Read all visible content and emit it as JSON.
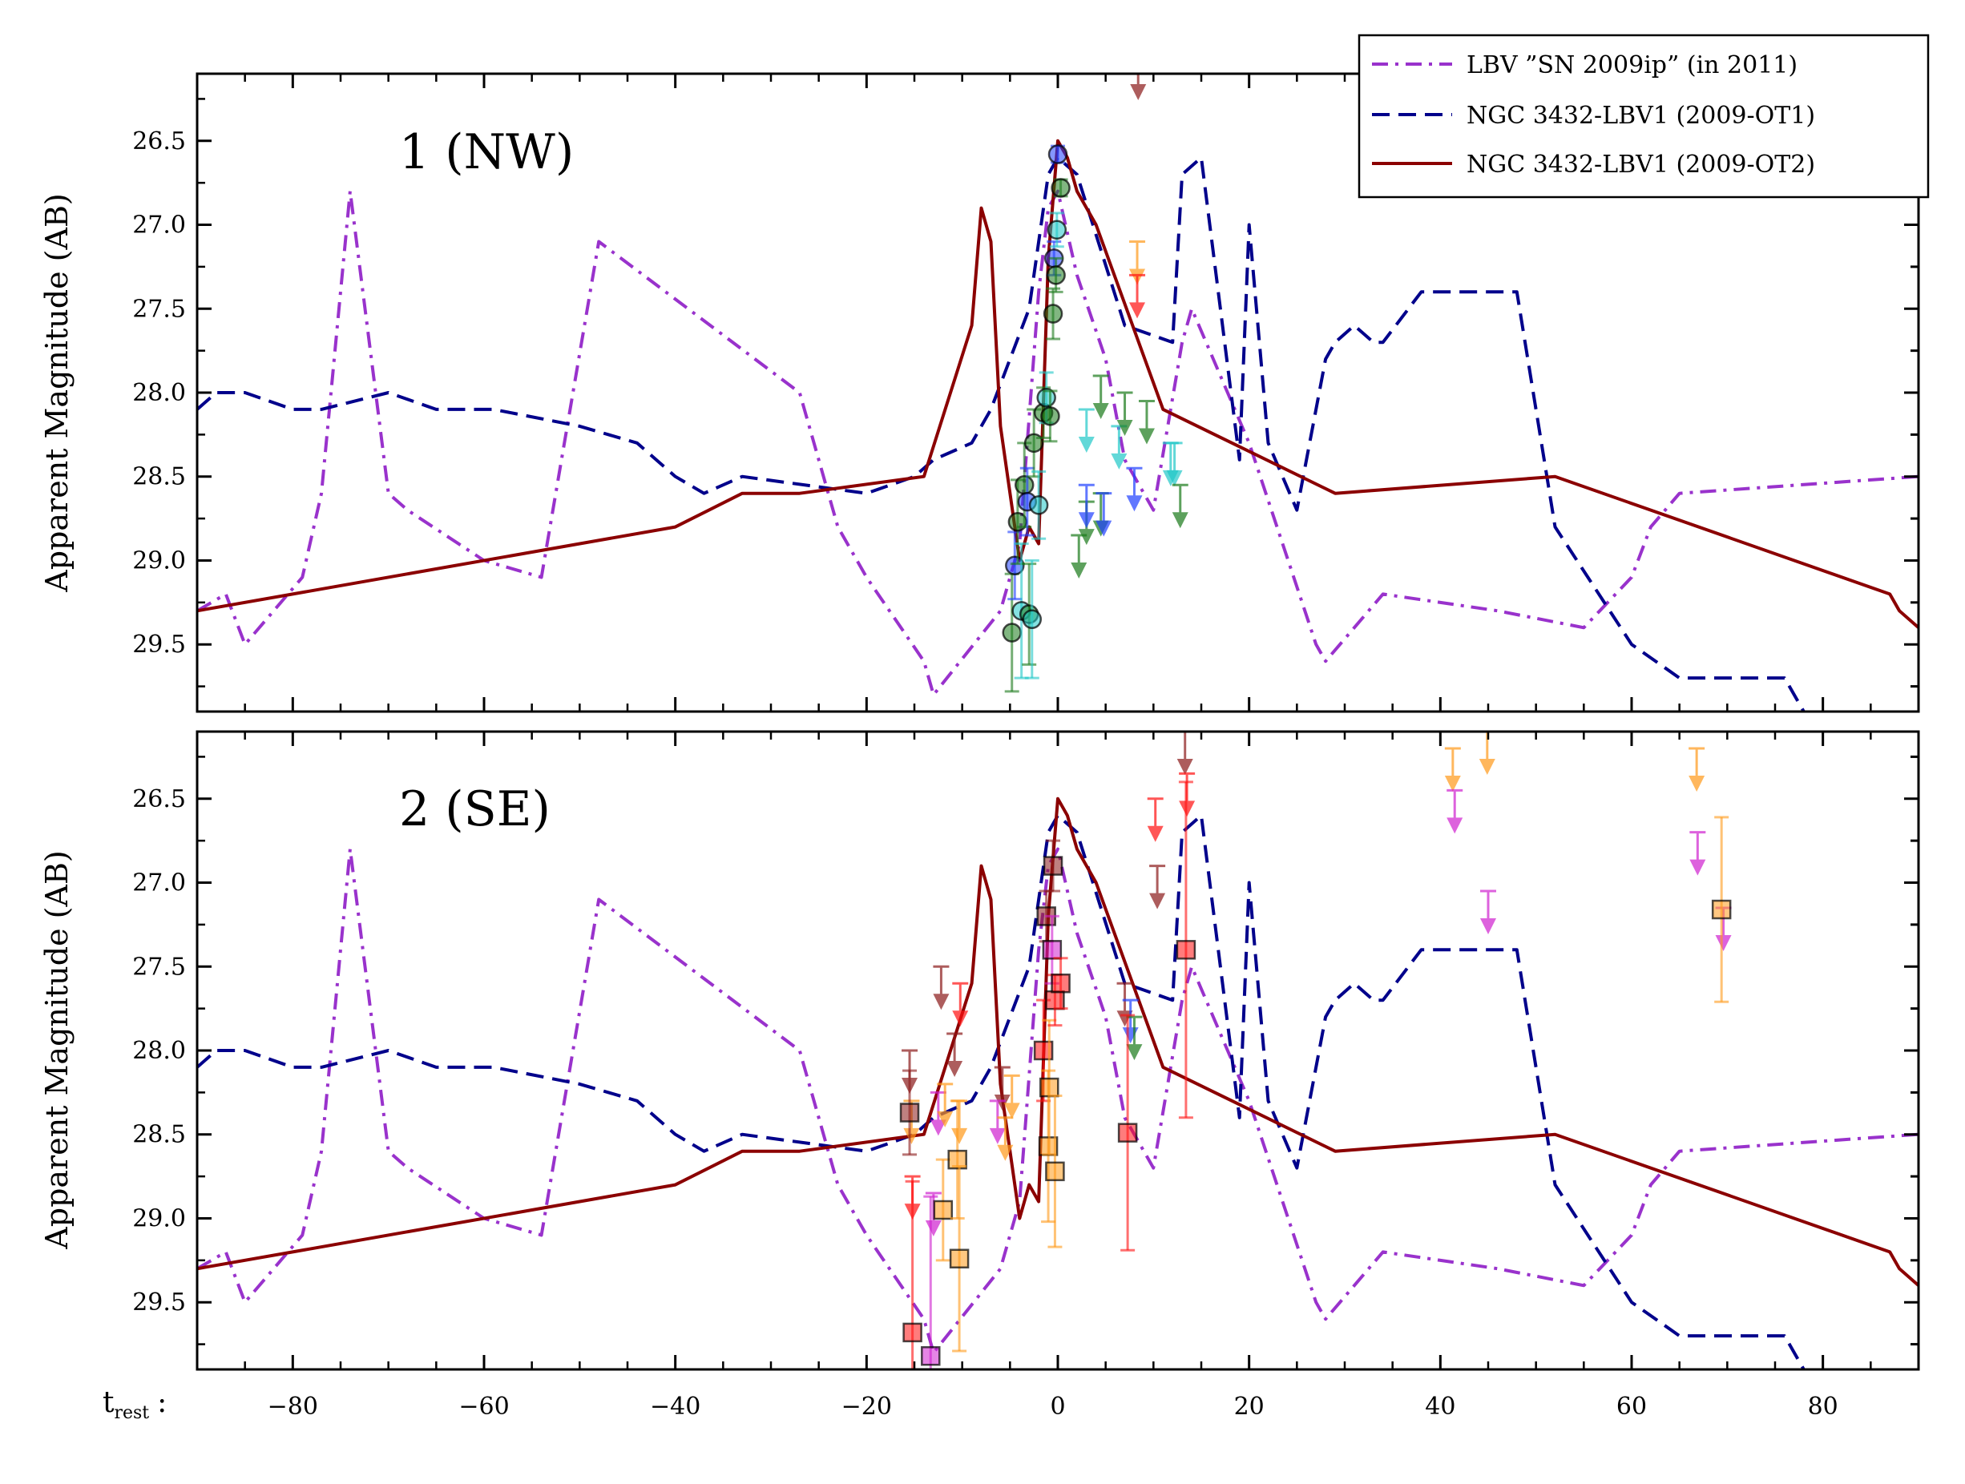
{
  "figure": {
    "trest_label": "t",
    "trest_subscript": "rest",
    "trest_colon": ":"
  },
  "legend": [
    {
      "label": "LBV ”SN 2009ip” (in 2011)",
      "color": "#9932CC",
      "style": "dashdot"
    },
    {
      "label": "NGC 3432-LBV1 (2009-OT1)",
      "color": "#00008B",
      "style": "dashed"
    },
    {
      "label": "NGC 3432-LBV1 (2009-OT2)",
      "color": "#8B0000",
      "style": "solid"
    }
  ],
  "colors": {
    "lbv_2009ip": "#9932CC",
    "ot1": "#00008B",
    "ot2": "#8B0000",
    "blue": "#1f3fff",
    "cyan": "#20c8c8",
    "green": "#1a7a1a",
    "red": "#ff1010",
    "orange": "#ff9a1a",
    "magenta": "#d020d0",
    "darkred": "#8b1a1a"
  },
  "chart_data": [
    {
      "type": "line",
      "title": "1 (NW)",
      "xlabel": "",
      "ylabel": "Apparent Magnitude (AB)",
      "xlim": [
        -90,
        90
      ],
      "ylim": [
        29.9,
        26.1
      ],
      "y_inverted": true,
      "xticks": [
        -80,
        -60,
        -40,
        -20,
        0,
        20,
        40,
        60,
        80
      ],
      "xtick_labels": [
        "−80",
        "−60",
        "−40",
        "−20",
        "0",
        "20",
        "40",
        "60",
        "80"
      ],
      "yticks": [
        26.5,
        27.0,
        27.5,
        28.0,
        28.5,
        29.0,
        29.5
      ],
      "ytick_labels": [
        "26.5",
        "27.0",
        "27.5",
        "28.0",
        "28.5",
        "29.0",
        "29.5"
      ],
      "series": [
        {
          "name": "LBV ”SN 2009ip” (in 2011)",
          "color": "#9932CC",
          "style": "dashdot",
          "x": [
            -90,
            -87,
            -85,
            -79,
            -77,
            -74,
            -70,
            -68,
            -60,
            -54,
            -48,
            -27,
            -23,
            -20,
            -14,
            -13,
            -6,
            -4,
            -2,
            -1,
            0,
            2,
            5,
            7,
            10,
            13,
            14,
            20,
            27,
            28,
            31,
            34,
            46,
            55,
            60,
            62,
            65,
            90
          ],
          "y": [
            29.3,
            29.2,
            29.5,
            29.1,
            28.6,
            26.8,
            28.6,
            28.7,
            29.0,
            29.1,
            27.1,
            28.0,
            28.8,
            29.1,
            29.6,
            29.8,
            29.3,
            28.9,
            27.4,
            26.9,
            26.8,
            27.3,
            27.8,
            28.4,
            28.7,
            27.7,
            27.5,
            28.3,
            29.5,
            29.6,
            29.4,
            29.2,
            29.3,
            29.4,
            29.1,
            28.8,
            28.6,
            28.5
          ]
        },
        {
          "name": "NGC 3432-LBV1 (2009-OT1)",
          "color": "#00008B",
          "style": "dashed",
          "x": [
            -90,
            -88,
            -85,
            -80,
            -79,
            -77,
            -70,
            -65,
            -60,
            -59,
            -50,
            -44,
            -40,
            -37,
            -33,
            -20,
            -15,
            -13,
            -9,
            -7,
            -3,
            -1,
            0,
            2,
            7,
            12,
            13,
            15,
            19,
            20,
            22,
            25,
            28,
            29,
            31,
            33,
            34,
            38,
            48,
            52,
            60,
            65,
            76,
            78
          ],
          "y": [
            28.1,
            28.0,
            28.0,
            28.1,
            28.1,
            28.1,
            28.0,
            28.1,
            28.1,
            28.1,
            28.2,
            28.3,
            28.5,
            28.6,
            28.5,
            28.6,
            28.5,
            28.4,
            28.3,
            28.1,
            27.5,
            26.7,
            26.6,
            26.7,
            27.6,
            27.7,
            26.7,
            26.6,
            28.4,
            27.0,
            28.3,
            28.7,
            27.8,
            27.7,
            27.6,
            27.7,
            27.7,
            27.4,
            27.4,
            28.8,
            29.5,
            29.7,
            29.7,
            29.9
          ]
        },
        {
          "name": "NGC 3432-LBV1 (2009-OT2)",
          "color": "#8B0000",
          "style": "solid",
          "x": [
            -90,
            -40,
            -33,
            -27,
            -14,
            -9,
            -8,
            -7,
            -6,
            -4,
            -3,
            -2,
            -1,
            0,
            1,
            2,
            4,
            11,
            29,
            52,
            87,
            88,
            90
          ],
          "y": [
            29.3,
            28.8,
            28.6,
            28.6,
            28.5,
            27.6,
            26.9,
            27.1,
            28.2,
            29.0,
            28.8,
            28.9,
            27.2,
            26.5,
            26.6,
            26.8,
            27.0,
            28.1,
            28.6,
            28.5,
            29.2,
            29.3,
            29.4
          ]
        }
      ],
      "detections": [
        {
          "band": "green",
          "x": -4.8,
          "y": 29.43,
          "err": 0.35
        },
        {
          "band": "blue",
          "x": -4.5,
          "y": 29.03,
          "err": 0.2
        },
        {
          "band": "green",
          "x": -4.2,
          "y": 28.77,
          "err": 0.25
        },
        {
          "band": "cyan",
          "x": -3.8,
          "y": 29.3,
          "err": 0.4
        },
        {
          "band": "green",
          "x": -3.5,
          "y": 28.55,
          "err": 0.25
        },
        {
          "band": "blue",
          "x": -3.2,
          "y": 28.65,
          "err": 0.2
        },
        {
          "band": "green",
          "x": -3.0,
          "y": 29.32,
          "err": 0.3
        },
        {
          "band": "cyan",
          "x": -2.7,
          "y": 29.35,
          "err": 0.35
        },
        {
          "band": "green",
          "x": -2.5,
          "y": 28.3,
          "err": 0.2
        },
        {
          "band": "cyan",
          "x": -2.0,
          "y": 28.67,
          "err": 0.2
        },
        {
          "band": "green",
          "x": -1.5,
          "y": 28.12,
          "err": 0.15
        },
        {
          "band": "cyan",
          "x": -1.2,
          "y": 28.03,
          "err": 0.15
        },
        {
          "band": "green",
          "x": -0.8,
          "y": 28.14,
          "err": 0.15
        },
        {
          "band": "green",
          "x": -0.5,
          "y": 27.53,
          "err": 0.15
        },
        {
          "band": "blue",
          "x": -0.4,
          "y": 27.2,
          "err": 0.1
        },
        {
          "band": "green",
          "x": -0.2,
          "y": 27.3,
          "err": 0.1
        },
        {
          "band": "cyan",
          "x": -0.1,
          "y": 27.03,
          "err": 0.1
        },
        {
          "band": "blue",
          "x": 0.0,
          "y": 26.58,
          "err": 0.05
        },
        {
          "band": "green",
          "x": 0.3,
          "y": 26.78,
          "err": 0.05
        }
      ],
      "upper_limits": [
        {
          "band": "darkred",
          "x": 8.4,
          "y": 26.0
        },
        {
          "band": "orange",
          "x": 8.3,
          "y": 27.1
        },
        {
          "band": "red",
          "x": 8.3,
          "y": 27.3
        },
        {
          "band": "cyan",
          "x": 3.0,
          "y": 28.1
        },
        {
          "band": "green",
          "x": 4.5,
          "y": 27.9
        },
        {
          "band": "cyan",
          "x": 6.4,
          "y": 28.2
        },
        {
          "band": "green",
          "x": 7.0,
          "y": 28.0
        },
        {
          "band": "green",
          "x": 9.3,
          "y": 28.05
        },
        {
          "band": "cyan",
          "x": 11.8,
          "y": 28.3
        },
        {
          "band": "cyan",
          "x": 12.2,
          "y": 28.3
        },
        {
          "band": "green",
          "x": 3.0,
          "y": 28.65
        },
        {
          "band": "blue",
          "x": 3.0,
          "y": 28.55
        },
        {
          "band": "green",
          "x": 4.5,
          "y": 28.6
        },
        {
          "band": "blue",
          "x": 4.8,
          "y": 28.6
        },
        {
          "band": "blue",
          "x": 8.0,
          "y": 28.45
        },
        {
          "band": "green",
          "x": 12.8,
          "y": 28.55
        },
        {
          "band": "green",
          "x": 2.2,
          "y": 28.85
        }
      ]
    },
    {
      "type": "line",
      "title": "2 (SE)",
      "xlabel": "",
      "ylabel": "Apparent Magnitude (AB)",
      "xlim": [
        -90,
        90
      ],
      "ylim": [
        29.9,
        26.1
      ],
      "y_inverted": true,
      "xticks": [
        -80,
        -60,
        -40,
        -20,
        0,
        20,
        40,
        60,
        80
      ],
      "xtick_labels": [
        "−80",
        "−60",
        "−40",
        "−20",
        "0",
        "20",
        "40",
        "60",
        "80"
      ],
      "yticks": [
        26.5,
        27.0,
        27.5,
        28.0,
        28.5,
        29.0,
        29.5
      ],
      "ytick_labels": [
        "26.5",
        "27.0",
        "27.5",
        "28.0",
        "28.5",
        "29.0",
        "29.5"
      ],
      "series": [
        {
          "name": "LBV ”SN 2009ip” (in 2011)",
          "color": "#9932CC",
          "style": "dashdot",
          "x": [
            -90,
            -87,
            -85,
            -79,
            -77,
            -74,
            -70,
            -68,
            -60,
            -54,
            -48,
            -27,
            -23,
            -20,
            -14,
            -13,
            -6,
            -4,
            -2,
            -1,
            0,
            2,
            5,
            7,
            10,
            13,
            14,
            20,
            27,
            28,
            31,
            34,
            46,
            55,
            60,
            62,
            65,
            90
          ],
          "y": [
            29.3,
            29.2,
            29.5,
            29.1,
            28.6,
            26.8,
            28.6,
            28.7,
            29.0,
            29.1,
            27.1,
            28.0,
            28.8,
            29.1,
            29.6,
            29.8,
            29.3,
            28.9,
            27.4,
            26.9,
            26.8,
            27.3,
            27.8,
            28.4,
            28.7,
            27.7,
            27.5,
            28.3,
            29.5,
            29.6,
            29.4,
            29.2,
            29.3,
            29.4,
            29.1,
            28.8,
            28.6,
            28.5
          ]
        },
        {
          "name": "NGC 3432-LBV1 (2009-OT1)",
          "color": "#00008B",
          "style": "dashed",
          "x": [
            -90,
            -88,
            -85,
            -80,
            -79,
            -77,
            -70,
            -65,
            -60,
            -59,
            -50,
            -44,
            -40,
            -37,
            -33,
            -20,
            -15,
            -13,
            -9,
            -7,
            -3,
            -1,
            0,
            2,
            7,
            12,
            13,
            15,
            19,
            20,
            22,
            25,
            28,
            29,
            31,
            33,
            34,
            38,
            48,
            52,
            60,
            65,
            76,
            78
          ],
          "y": [
            28.1,
            28.0,
            28.0,
            28.1,
            28.1,
            28.1,
            28.0,
            28.1,
            28.1,
            28.1,
            28.2,
            28.3,
            28.5,
            28.6,
            28.5,
            28.6,
            28.5,
            28.4,
            28.3,
            28.1,
            27.5,
            26.7,
            26.6,
            26.7,
            27.6,
            27.7,
            26.7,
            26.6,
            28.4,
            27.0,
            28.3,
            28.7,
            27.8,
            27.7,
            27.6,
            27.7,
            27.7,
            27.4,
            27.4,
            28.8,
            29.5,
            29.7,
            29.7,
            29.9
          ]
        },
        {
          "name": "NGC 3432-LBV1 (2009-OT2)",
          "color": "#8B0000",
          "style": "solid",
          "x": [
            -90,
            -40,
            -33,
            -27,
            -14,
            -9,
            -8,
            -7,
            -6,
            -4,
            -3,
            -2,
            -1,
            0,
            1,
            2,
            4,
            11,
            29,
            52,
            87,
            88,
            90
          ],
          "y": [
            29.3,
            28.8,
            28.6,
            28.6,
            28.5,
            27.6,
            26.9,
            27.1,
            28.2,
            29.0,
            28.8,
            28.9,
            27.2,
            26.5,
            26.6,
            26.8,
            27.0,
            28.1,
            28.6,
            28.5,
            29.2,
            29.3,
            29.4
          ]
        }
      ],
      "detections": [
        {
          "band": "darkred",
          "x": -15.5,
          "y": 28.37,
          "err": 0.25
        },
        {
          "band": "red",
          "x": -15.2,
          "y": 29.68,
          "err": 0.9
        },
        {
          "band": "magenta",
          "x": -13.3,
          "y": 29.82,
          "err": 0.95
        },
        {
          "band": "orange",
          "x": -12.0,
          "y": 28.95,
          "err": 0.3
        },
        {
          "band": "orange",
          "x": -10.5,
          "y": 28.65,
          "err": 0.35
        },
        {
          "band": "orange",
          "x": -10.3,
          "y": 29.24,
          "err": 0.55
        },
        {
          "band": "red",
          "x": -1.5,
          "y": 28.0,
          "err": 0.3
        },
        {
          "band": "darkred",
          "x": -1.2,
          "y": 27.2,
          "err": 0.15
        },
        {
          "band": "orange",
          "x": -1.0,
          "y": 28.57,
          "err": 0.45
        },
        {
          "band": "orange",
          "x": -0.9,
          "y": 28.22,
          "err": 0.4
        },
        {
          "band": "magenta",
          "x": -0.6,
          "y": 27.4,
          "err": 0.2
        },
        {
          "band": "darkred",
          "x": -0.5,
          "y": 26.9,
          "err": 0.15
        },
        {
          "band": "orange",
          "x": -0.3,
          "y": 28.72,
          "err": 0.45
        },
        {
          "band": "red",
          "x": -0.3,
          "y": 27.7,
          "err": 0.15
        },
        {
          "band": "red",
          "x": 0.3,
          "y": 27.6,
          "err": 0.15
        },
        {
          "band": "red",
          "x": 7.3,
          "y": 28.49,
          "err": 0.7
        },
        {
          "band": "red",
          "x": 13.4,
          "y": 27.4,
          "err": 1.0
        },
        {
          "band": "orange",
          "x": 69.4,
          "y": 27.16,
          "err": 0.55
        }
      ],
      "upper_limits": [
        {
          "band": "darkred",
          "x": -15.5,
          "y": 28.0
        },
        {
          "band": "orange",
          "x": -15.3,
          "y": 28.3
        },
        {
          "band": "red",
          "x": -15.2,
          "y": 28.75
        },
        {
          "band": "magenta",
          "x": -13.0,
          "y": 28.85
        },
        {
          "band": "magenta",
          "x": -12.5,
          "y": 28.25
        },
        {
          "band": "orange",
          "x": -11.8,
          "y": 28.2
        },
        {
          "band": "darkred",
          "x": -12.2,
          "y": 27.5
        },
        {
          "band": "darkred",
          "x": -10.8,
          "y": 27.9
        },
        {
          "band": "red",
          "x": -10.2,
          "y": 27.6
        },
        {
          "band": "orange",
          "x": -10.3,
          "y": 28.3
        },
        {
          "band": "darkred",
          "x": -5.8,
          "y": 28.1
        },
        {
          "band": "magenta",
          "x": -6.3,
          "y": 28.3
        },
        {
          "band": "orange",
          "x": -5.5,
          "y": 28.4
        },
        {
          "band": "orange",
          "x": -4.8,
          "y": 28.15
        },
        {
          "band": "darkred",
          "x": 7.0,
          "y": 27.6
        },
        {
          "band": "blue",
          "x": 7.6,
          "y": 27.7
        },
        {
          "band": "green",
          "x": 8.0,
          "y": 27.8
        },
        {
          "band": "red",
          "x": 10.2,
          "y": 26.5
        },
        {
          "band": "darkred",
          "x": 10.4,
          "y": 26.9
        },
        {
          "band": "darkred",
          "x": 13.3,
          "y": 26.1
        },
        {
          "band": "red",
          "x": 13.5,
          "y": 26.35
        },
        {
          "band": "orange",
          "x": 41.3,
          "y": 26.2
        },
        {
          "band": "magenta",
          "x": 41.5,
          "y": 26.45
        },
        {
          "band": "orange",
          "x": 44.9,
          "y": 26.1
        },
        {
          "band": "magenta",
          "x": 45.0,
          "y": 27.05
        },
        {
          "band": "orange",
          "x": 66.8,
          "y": 26.2
        },
        {
          "band": "magenta",
          "x": 66.9,
          "y": 26.7
        },
        {
          "band": "magenta",
          "x": 69.6,
          "y": 27.15
        }
      ]
    }
  ]
}
